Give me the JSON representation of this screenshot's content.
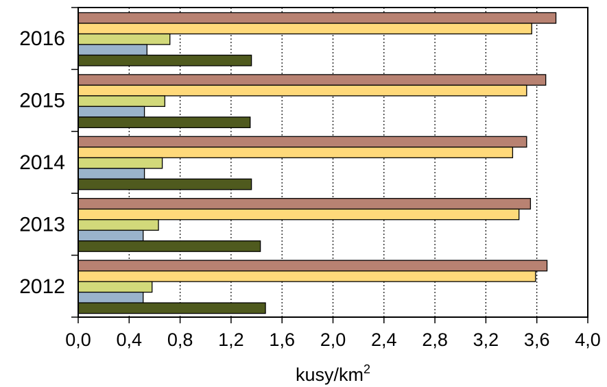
{
  "chart_data": {
    "type": "bar",
    "orientation": "horizontal",
    "categories": [
      "2012",
      "2013",
      "2014",
      "2015",
      "2016"
    ],
    "series": [
      {
        "color": "#4f5a1e",
        "values": [
          1.47,
          1.43,
          1.36,
          1.35,
          1.36
        ]
      },
      {
        "color": "#9ab3cb",
        "values": [
          0.51,
          0.51,
          0.52,
          0.52,
          0.54
        ]
      },
      {
        "color": "#d2d97a",
        "values": [
          0.58,
          0.63,
          0.66,
          0.68,
          0.72
        ]
      },
      {
        "color": "#ffd97a",
        "values": [
          3.59,
          3.46,
          3.41,
          3.52,
          3.56
        ]
      },
      {
        "color": "#b88272",
        "values": [
          3.68,
          3.55,
          3.52,
          3.67,
          3.75
        ]
      }
    ],
    "xlim": [
      0,
      4.0
    ],
    "x_ticks": [
      "0,0",
      "0,4",
      "0,8",
      "1,2",
      "1,6",
      "2,0",
      "2,4",
      "2,8",
      "3,2",
      "3,6",
      "4,0"
    ],
    "xlabel": "kusy/km",
    "xlabel_superscript": "2",
    "ylabel": "",
    "title": "",
    "grid": "vertical dotted",
    "legend": "none"
  }
}
